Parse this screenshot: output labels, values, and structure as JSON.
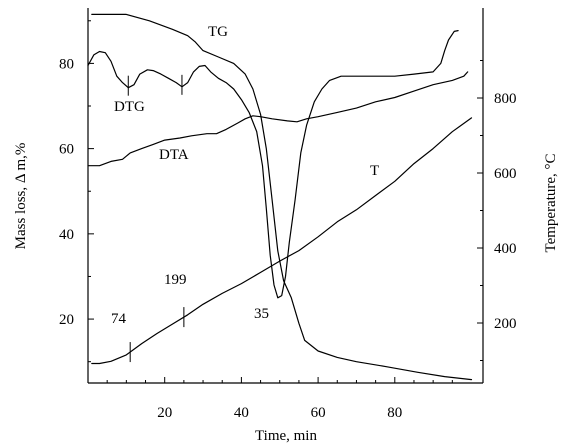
{
  "chart_data": {
    "type": "line",
    "title": "",
    "xlabel": "Time, min",
    "ylabel_left": "Mass loss, Δ m,%",
    "ylabel_right": "Temperature, °C",
    "xlim": [
      0,
      103
    ],
    "ylim_left": [
      5,
      93
    ],
    "ylim_right": [
      40,
      1040
    ],
    "x_ticks": [
      20,
      40,
      60,
      80
    ],
    "y_left_ticks": [
      20,
      40,
      60,
      80
    ],
    "y_right_ticks": [
      200,
      400,
      600,
      800
    ],
    "grid": false,
    "legend": "none",
    "series": [
      {
        "name": "TG",
        "axis": "left",
        "points": [
          [
            1,
            91.5
          ],
          [
            10,
            91.5
          ],
          [
            16,
            90
          ],
          [
            22,
            88
          ],
          [
            26,
            86.5
          ],
          [
            28,
            85
          ],
          [
            30,
            83
          ],
          [
            34,
            81.5
          ],
          [
            38,
            80
          ],
          [
            41,
            77.5
          ],
          [
            43,
            74
          ],
          [
            45,
            68
          ],
          [
            46.5,
            60
          ],
          [
            48,
            48
          ],
          [
            49.5,
            36
          ],
          [
            51,
            29
          ],
          [
            53,
            25
          ],
          [
            55,
            19
          ],
          [
            56.5,
            15
          ],
          [
            60,
            12.5
          ],
          [
            65,
            11
          ],
          [
            70,
            10
          ],
          [
            78,
            8.8
          ],
          [
            86,
            7.5
          ],
          [
            93,
            6.5
          ],
          [
            100,
            5.8
          ]
        ]
      },
      {
        "name": "DTG",
        "axis": "left",
        "points": [
          [
            0,
            79.5
          ],
          [
            1.5,
            82
          ],
          [
            3,
            82.8
          ],
          [
            4.5,
            82.5
          ],
          [
            6,
            80.5
          ],
          [
            7.5,
            77
          ],
          [
            9,
            75.5
          ],
          [
            10.5,
            74.3
          ],
          [
            12,
            75
          ],
          [
            13.5,
            77.5
          ],
          [
            15.5,
            78.5
          ],
          [
            17,
            78.3
          ],
          [
            19,
            77.5
          ],
          [
            21,
            76.5
          ],
          [
            23,
            75.5
          ],
          [
            24.5,
            74.5
          ],
          [
            26,
            75.5
          ],
          [
            27.5,
            78
          ],
          [
            29,
            79.3
          ],
          [
            30.5,
            79.5
          ],
          [
            32,
            78
          ],
          [
            34,
            76.5
          ],
          [
            36,
            75.5
          ],
          [
            38,
            74
          ],
          [
            40,
            71.5
          ],
          [
            42,
            68.5
          ],
          [
            44,
            64
          ],
          [
            45.5,
            56
          ],
          [
            46.5,
            46
          ],
          [
            47.5,
            35
          ],
          [
            48.5,
            28
          ],
          [
            49.5,
            25
          ],
          [
            50.5,
            25.5
          ],
          [
            51.5,
            30
          ],
          [
            52.5,
            38
          ],
          [
            54,
            48
          ],
          [
            55.5,
            59
          ],
          [
            57,
            65.5
          ],
          [
            59,
            71
          ],
          [
            61,
            74
          ],
          [
            63,
            76
          ],
          [
            66,
            77
          ],
          [
            70,
            77
          ],
          [
            75,
            77
          ],
          [
            80,
            77
          ],
          [
            85,
            77.5
          ],
          [
            90,
            78
          ],
          [
            92,
            80
          ],
          [
            93,
            83
          ],
          [
            94,
            85.5
          ],
          [
            95.5,
            87.5
          ],
          [
            96.5,
            87.7
          ]
        ]
      },
      {
        "name": "DTA",
        "axis": "left",
        "points": [
          [
            0,
            56
          ],
          [
            3,
            56
          ],
          [
            6,
            57
          ],
          [
            9,
            57.5
          ],
          [
            11,
            59
          ],
          [
            14,
            60
          ],
          [
            17,
            61
          ],
          [
            20,
            62
          ],
          [
            24,
            62.5
          ],
          [
            27,
            63
          ],
          [
            31,
            63.5
          ],
          [
            33.5,
            63.5
          ],
          [
            36,
            64.5
          ],
          [
            39,
            66
          ],
          [
            41,
            67
          ],
          [
            43,
            67.7
          ],
          [
            45,
            67.5
          ],
          [
            48,
            67
          ],
          [
            52,
            66.5
          ],
          [
            54.5,
            66.3
          ],
          [
            57,
            67
          ],
          [
            60,
            67.5
          ],
          [
            65,
            68.5
          ],
          [
            70,
            69.5
          ],
          [
            75,
            71
          ],
          [
            80,
            72
          ],
          [
            85,
            73.5
          ],
          [
            90,
            75
          ],
          [
            95,
            76
          ],
          [
            98,
            77
          ],
          [
            99,
            78
          ]
        ]
      },
      {
        "name": "T",
        "axis": "right",
        "points": [
          [
            1,
            92
          ],
          [
            3,
            92
          ],
          [
            6,
            98
          ],
          [
            10,
            115
          ],
          [
            14,
            145
          ],
          [
            18,
            172
          ],
          [
            22,
            197
          ],
          [
            26,
            222
          ],
          [
            30,
            250
          ],
          [
            35,
            279
          ],
          [
            40,
            305
          ],
          [
            45,
            335
          ],
          [
            50,
            365
          ],
          [
            55,
            393
          ],
          [
            60,
            430
          ],
          [
            65,
            470
          ],
          [
            70,
            502
          ],
          [
            75,
            540
          ],
          [
            80,
            578
          ],
          [
            85,
            625
          ],
          [
            90,
            665
          ],
          [
            95,
            710
          ],
          [
            100,
            747
          ]
        ]
      }
    ],
    "curve_labels": [
      "TG",
      "DTG",
      "DTA",
      "T"
    ],
    "annotations": [
      {
        "text": "74",
        "x": 12,
        "y": 13
      },
      {
        "text": "199",
        "x": 26,
        "y": 21
      },
      {
        "text": "35",
        "x": 50,
        "y": 23
      }
    ]
  }
}
